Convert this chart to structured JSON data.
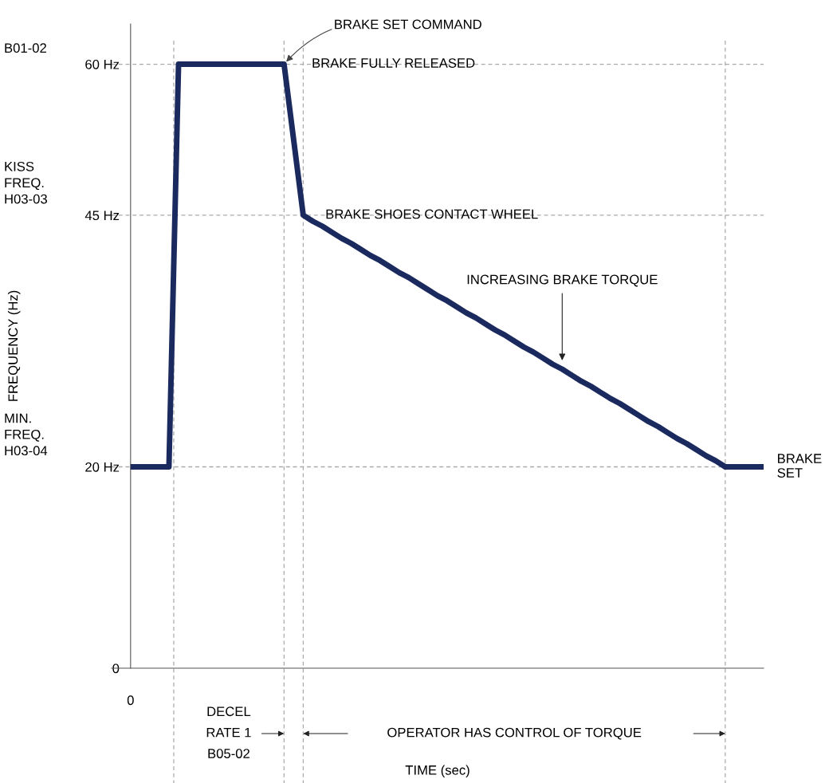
{
  "chart_data": {
    "type": "line",
    "ylabel": "FREQUENCY (Hz)",
    "categories": [
      null,
      null,
      null,
      null,
      null,
      null,
      null,
      null,
      null,
      null,
      null,
      null,
      null,
      null,
      null,
      null,
      null,
      null,
      null,
      null,
      null,
      null,
      null,
      null,
      null,
      null,
      null,
      null,
      null,
      null,
      null,
      null,
      null,
      null,
      null,
      null,
      null,
      null,
      null,
      null,
      null,
      null,
      null,
      null,
      null,
      null,
      null,
      null,
      null,
      null,
      null,
      null,
      null,
      null,
      null,
      null,
      null,
      null,
      null,
      null,
      null,
      null,
      null,
      null,
      null,
      null,
      null
    ],
    "series": [
      {
        "color": "#1b2a5e",
        "values": [
          20,
          20,
          20,
          20,
          20,
          60,
          60,
          60,
          60,
          60,
          60,
          60,
          60,
          60,
          60,
          60,
          60,
          52.5,
          45,
          44.4,
          43.9,
          43.3,
          42.7,
          42.2,
          41.6,
          41.0,
          40.5,
          39.9,
          39.3,
          38.8,
          38.2,
          37.6,
          37.0,
          36.5,
          35.9,
          35.3,
          34.8,
          34.2,
          33.6,
          33.1,
          32.5,
          31.9,
          31.4,
          30.8,
          30.2,
          29.7,
          29.1,
          28.5,
          28.0,
          27.4,
          26.8,
          26.3,
          25.7,
          25.1,
          24.5,
          24.0,
          23.4,
          22.8,
          22.3,
          21.7,
          21.1,
          20.6,
          20,
          20,
          20,
          20,
          20
        ]
      }
    ],
    "ylim": [
      0,
      64
    ],
    "yticks": [
      0,
      {
        "value": 20,
        "label": "20 Hz"
      },
      {
        "value": 45,
        "label": "45 Hz"
      },
      {
        "value": 60,
        "label": "60 Hz"
      }
    ],
    "ref_lines": [
      {
        "axis": "y",
        "value": 60,
        "color": "#aaaaaa",
        "line_style": "dashed"
      },
      {
        "axis": "y",
        "value": 45,
        "color": "#aaaaaa",
        "line_style": "dashed"
      },
      {
        "axis": "y",
        "value": 20,
        "color": "#aaaaaa",
        "line_style": "dashed"
      }
    ],
    "annotations": [
      "B01-02",
      "KISS\nFREQ.\nH03-03",
      "MIN.\nFREQ.\nH03-04",
      "BRAKE SET COMMAND",
      "BRAKE FULLY RELEASED",
      "BRAKE SHOES CONTACT WHEEL",
      "INCREASING BRAKE TORQUE",
      "BRAKE\nSET",
      "0",
      "DECEL\nRATE 1\nB05-02",
      "OPERATOR HAS CONTROL OF TORQUE",
      "TIME (sec)"
    ],
    "grid": "x",
    "legend": false,
    "line_style": "solid",
    "marker": "none"
  }
}
